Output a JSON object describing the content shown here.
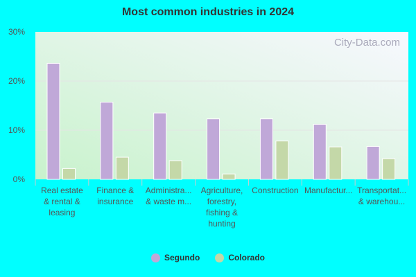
{
  "chart_data": {
    "type": "bar",
    "title": "Most common industries in 2024",
    "categories": [
      [
        "Real estate",
        "& rental &",
        "leasing"
      ],
      [
        "Finance &",
        "insurance"
      ],
      [
        "Administra...",
        "& waste m..."
      ],
      [
        "Agriculture,",
        "forestry,",
        "fishing &",
        "hunting"
      ],
      [
        "Construction"
      ],
      [
        "Manufactur..."
      ],
      [
        "Transportat...",
        "& warehou..."
      ]
    ],
    "series": [
      {
        "name": "Segundo",
        "color": "#c0a8d8",
        "values": [
          23.6,
          15.7,
          13.5,
          12.3,
          12.3,
          11.2,
          6.7
        ]
      },
      {
        "name": "Colorado",
        "color": "#c4d8a8",
        "values": [
          2.2,
          4.5,
          3.8,
          1.1,
          7.8,
          6.6,
          4.2
        ]
      }
    ],
    "ylim": [
      0,
      30
    ],
    "yticks": [
      0,
      10,
      20,
      30
    ],
    "ytick_labels": [
      "0%",
      "10%",
      "20%",
      "30%"
    ],
    "grid": true,
    "legend_position": "bottom",
    "watermark": "City-Data.com"
  }
}
